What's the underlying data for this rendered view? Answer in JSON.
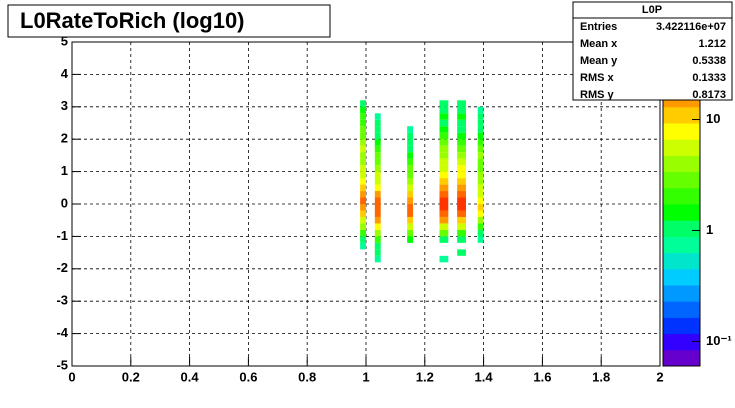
{
  "chart_data": {
    "type": "heatmap",
    "title": "L0RateToRich (log10)",
    "xlim": [
      0,
      2
    ],
    "ylim": [
      -5,
      5
    ],
    "zlim": [
      0.06,
      50
    ],
    "log_z": true,
    "grid": true,
    "xticks": [
      0,
      0.2,
      0.4,
      0.6,
      0.8,
      1,
      1.2,
      1.4,
      1.6,
      1.8,
      2
    ],
    "yticks": [
      -5,
      -4,
      -3,
      -2,
      -1,
      0,
      1,
      2,
      3,
      4,
      5
    ],
    "zticks": [
      {
        "value": 0.1,
        "label": "10⁻¹"
      },
      1,
      10
    ],
    "palette": [
      "#6600cc",
      "#3300ff",
      "#0033ff",
      "#0066ff",
      "#0099ff",
      "#00ccff",
      "#00e6cc",
      "#00ff99",
      "#00ff66",
      "#00ff00",
      "#33ff00",
      "#66ff00",
      "#99ff00",
      "#ccff00",
      "#ffff00",
      "#ffcc00",
      "#ff9900",
      "#ff6600",
      "#ff3300",
      "#ff0000"
    ],
    "columns": [
      [
        0.98,
        1.0
      ],
      [
        1.03,
        1.05
      ],
      [
        1.14,
        1.16
      ],
      [
        1.25,
        1.28
      ],
      [
        1.31,
        1.34
      ],
      [
        1.38,
        1.4
      ]
    ],
    "y_edges": [
      -1.8,
      -1.6,
      -1.4,
      -1.2,
      -1.0,
      -0.8,
      -0.6,
      -0.4,
      -0.2,
      0,
      0.2,
      0.4,
      0.6,
      0.8,
      1.0,
      1.2,
      1.4,
      1.6,
      1.8,
      2.0,
      2.2,
      2.4,
      2.6,
      2.8,
      3.0,
      3.2,
      3.4
    ],
    "z": [
      [
        null,
        null,
        0.8,
        1.2,
        2,
        4,
        6,
        10,
        15,
        20,
        18,
        12,
        8,
        6,
        5,
        4,
        4,
        5,
        4,
        3,
        3,
        2,
        2,
        1.5,
        1.2,
        null
      ],
      [
        0.8,
        0.9,
        1.2,
        2,
        4,
        8,
        14,
        22,
        25,
        20,
        14,
        9,
        6,
        5,
        4,
        3,
        2.5,
        2,
        1.5,
        1.2,
        1,
        0.9,
        0.8,
        null,
        null,
        null
      ],
      [
        null,
        null,
        null,
        1.5,
        3,
        6,
        12,
        20,
        24,
        18,
        10,
        6,
        4,
        3,
        2.5,
        2,
        1.5,
        1.2,
        1,
        0.9,
        0.8,
        null,
        null,
        null,
        null,
        null
      ],
      [
        0.8,
        null,
        null,
        1.2,
        2.5,
        6,
        14,
        25,
        30,
        28,
        20,
        14,
        10,
        8,
        6,
        5,
        4,
        4,
        3,
        2,
        1.5,
        1.2,
        1.5,
        1,
        1.2,
        null
      ],
      [
        null,
        0.9,
        null,
        1,
        2,
        5,
        12,
        22,
        28,
        30,
        22,
        16,
        12,
        9,
        7,
        5,
        4,
        3,
        2,
        1.5,
        1.2,
        1,
        1.5,
        1,
        0.9,
        null
      ],
      [
        null,
        null,
        null,
        0.8,
        1.2,
        2,
        4,
        8,
        10,
        8,
        6,
        5,
        4,
        3.5,
        3,
        3,
        4,
        3,
        2,
        1.5,
        1.2,
        1,
        0.9,
        0.8,
        null,
        null
      ]
    ],
    "stats": {
      "title": "L0P",
      "rows": [
        [
          "Entries",
          "3.422116e+07"
        ],
        [
          "Mean x",
          "1.212"
        ],
        [
          "Mean y",
          "0.5338"
        ],
        [
          "RMS x",
          "0.1333"
        ],
        [
          "RMS y",
          "0.8173"
        ]
      ]
    }
  }
}
